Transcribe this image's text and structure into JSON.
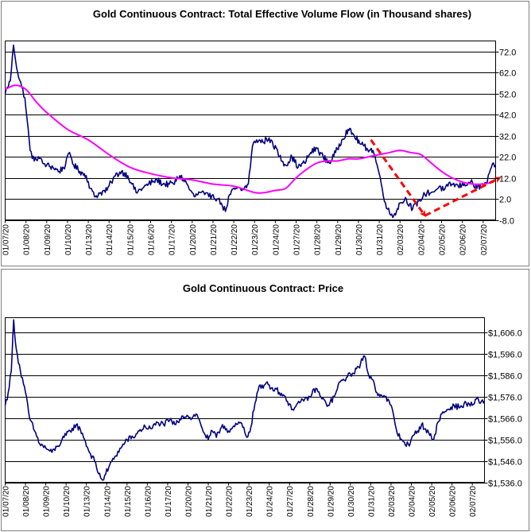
{
  "colors": {
    "series_main": "#000080",
    "moving_average": "#ff00ff",
    "trend_arrows": "#ff0000",
    "grid": "#000000",
    "background": "#ffffff"
  },
  "chart_data": [
    {
      "type": "line",
      "title": "Gold Continuous Contract: Total Effective Volume Flow (in Thousand shares)",
      "xlabel": "",
      "ylabel": "",
      "ylim": [
        -8,
        77
      ],
      "y_ticks": [
        -8,
        2,
        12,
        22,
        32,
        42,
        52,
        62,
        72
      ],
      "y_tick_labels": [
        "-8.0",
        "2.0",
        "12.0",
        "22.0",
        "32.0",
        "42.0",
        "52.0",
        "62.0",
        "72.0"
      ],
      "y_axis_side": "right",
      "grid": true,
      "legend": "none",
      "x_categories": [
        "01/07/20",
        "01/08/20",
        "01/09/20",
        "01/10/20",
        "01/13/20",
        "01/14/20",
        "01/15/20",
        "01/16/20",
        "01/17/20",
        "01/20/20",
        "01/21/20",
        "01/22/20",
        "01/23/20",
        "01/24/20",
        "01/27/20",
        "01/28/20",
        "01/29/20",
        "01/30/20",
        "01/31/20",
        "02/03/20",
        "02/04/20",
        "02/05/20",
        "02/06/20",
        "02/07/20"
      ],
      "series": [
        {
          "style": "volatile",
          "color": "#000080",
          "x": [
            0,
            0.1,
            0.25,
            0.4,
            0.6,
            0.8,
            0.95,
            1.05,
            1.2,
            1.4,
            1.6,
            1.8,
            2,
            2.3,
            2.6,
            2.9,
            3.1,
            3.3,
            3.6,
            3.9,
            4.1,
            4.3,
            4.6,
            4.9,
            5.1,
            5.3,
            5.6,
            5.9,
            6.1,
            6.3,
            6.6,
            6.9,
            7.1,
            7.3,
            7.6,
            7.9,
            8.1,
            8.4,
            8.7,
            8.9,
            9.1,
            9.4,
            9.6,
            9.8,
            10,
            10.2,
            10.4,
            10.6,
            10.8,
            11.1,
            11.4,
            11.7,
            11.9,
            12.1,
            12.4,
            12.7,
            12.9,
            13.05,
            13.2,
            13.5,
            13.8,
            14.1,
            14.4,
            14.7,
            15,
            15.3,
            15.6,
            15.9,
            16.2,
            16.5,
            16.8,
            17.1,
            17.4,
            17.7,
            17.9,
            18.1,
            18.3,
            18.5,
            18.7,
            19,
            19.3,
            19.6,
            19.9,
            20.1,
            20.3,
            20.5,
            20.7,
            20.9,
            21.1,
            21.3,
            21.5,
            21.8,
            22.1,
            22.4,
            22.7,
            23,
            23.2,
            23.4,
            23.6
          ],
          "y": [
            52,
            55,
            58,
            75,
            62,
            55,
            50,
            40,
            25,
            20,
            22,
            19,
            18,
            17,
            15,
            18,
            24,
            18,
            15,
            13,
            7,
            3,
            5,
            6,
            10,
            13,
            15,
            13,
            9,
            5,
            7,
            9,
            10,
            11,
            9,
            9,
            9,
            13,
            10,
            6,
            3,
            5,
            4,
            3,
            4,
            2,
            0,
            -4,
            4,
            7,
            6,
            9,
            27,
            30,
            29,
            31,
            27,
            26,
            22,
            18,
            22,
            17,
            19,
            24,
            26,
            22,
            19,
            24,
            30,
            35,
            32,
            28,
            26,
            25,
            18,
            9,
            0,
            -5,
            -6,
            0,
            2,
            -3,
            1,
            3,
            5,
            5,
            6,
            8,
            6,
            8,
            9,
            8,
            9,
            10,
            7,
            9,
            10,
            17,
            18
          ]
        },
        {
          "style": "smooth",
          "color": "#ff00ff",
          "x": [
            0,
            0.5,
            1,
            1.5,
            2,
            3,
            4,
            5,
            6,
            7,
            8,
            9,
            10,
            11,
            12,
            12.5,
            13,
            13.5,
            14,
            14.5,
            15,
            15.5,
            16,
            16.5,
            17,
            17.5,
            18,
            18.5,
            19,
            19.5,
            20,
            20.5,
            21,
            21.5,
            22,
            22.5,
            23,
            23.5
          ],
          "y": [
            54,
            56,
            54,
            48,
            43,
            35,
            30,
            23,
            17,
            14,
            12,
            11,
            9,
            8,
            5,
            5,
            6,
            7,
            12,
            16,
            19,
            20,
            20,
            21,
            21,
            22,
            23,
            24,
            25,
            24,
            23,
            19,
            15,
            12,
            10,
            9,
            9,
            10
          ]
        }
      ],
      "annotations": [
        {
          "kind": "dashed-arrow",
          "color": "#ff0000",
          "from": [
            17.6,
            30
          ],
          "to": [
            20.2,
            -6
          ]
        },
        {
          "kind": "dashed-arrow",
          "color": "#ff0000",
          "from": [
            20.2,
            -6
          ],
          "to": [
            23.8,
            12
          ]
        }
      ]
    },
    {
      "type": "line",
      "title": "Gold Continuous Contract: Price",
      "xlabel": "",
      "ylabel": "",
      "ylim": [
        1536,
        1613
      ],
      "y_ticks": [
        1536,
        1546,
        1556,
        1566,
        1576,
        1586,
        1596,
        1606
      ],
      "y_tick_labels": [
        "$1,536.0",
        "$1,546.0",
        "$1,556.0",
        "$1,566.0",
        "$1,576.0",
        "$1,586.0",
        "$1,596.0",
        "$1,606.0"
      ],
      "y_axis_side": "right",
      "grid": true,
      "legend": "none",
      "x_categories": [
        "01/07/20",
        "01/08/20",
        "01/09/20",
        "01/10/20",
        "01/13/20",
        "01/14/20",
        "01/15/20",
        "01/16/20",
        "01/17/20",
        "01/20/20",
        "01/21/20",
        "01/22/20",
        "01/23/20",
        "01/24/20",
        "01/27/20",
        "01/28/20",
        "01/29/20",
        "01/30/20",
        "01/31/20",
        "02/03/20",
        "02/04/20",
        "02/05/20",
        "02/06/20",
        "02/07/20"
      ],
      "series": [
        {
          "style": "volatile",
          "color": "#000080",
          "x": [
            0,
            0.15,
            0.3,
            0.42,
            0.55,
            0.75,
            0.9,
            1,
            1.2,
            1.45,
            1.7,
            2,
            2.3,
            2.6,
            2.9,
            3.2,
            3.5,
            3.8,
            4.1,
            4.4,
            4.6,
            4.8,
            5.1,
            5.4,
            5.7,
            6,
            6.3,
            6.6,
            6.9,
            7.2,
            7.5,
            7.8,
            8.1,
            8.4,
            8.7,
            9,
            9.2,
            9.4,
            9.6,
            9.8,
            10,
            10.2,
            10.4,
            10.7,
            11,
            11.3,
            11.6,
            11.9,
            12.1,
            12.3,
            12.5,
            12.7,
            12.9,
            13.1,
            13.3,
            13.5,
            13.8,
            14.1,
            14.4,
            14.7,
            15,
            15.3,
            15.6,
            15.9,
            16.2,
            16.5,
            16.8,
            17.1,
            17.4,
            17.7,
            17.9,
            18.1,
            18.3,
            18.5,
            18.7,
            19,
            19.3,
            19.6,
            19.9,
            20.1,
            20.3,
            20.5,
            20.7,
            20.9,
            21.1,
            21.3,
            21.5,
            21.8,
            22.1,
            22.4,
            22.7,
            23,
            23.2,
            23.4,
            23.6
          ],
          "y": [
            1572,
            1578,
            1588,
            1612,
            1598,
            1588,
            1582,
            1578,
            1566,
            1560,
            1554,
            1552,
            1550,
            1553,
            1557,
            1560,
            1563,
            1559,
            1551,
            1546,
            1540,
            1537,
            1543,
            1548,
            1552,
            1556,
            1557,
            1560,
            1562,
            1561,
            1564,
            1563,
            1565,
            1563,
            1567,
            1567,
            1566,
            1568,
            1564,
            1559,
            1556,
            1560,
            1557,
            1563,
            1560,
            1562,
            1564,
            1557,
            1562,
            1573,
            1581,
            1580,
            1583,
            1580,
            1580,
            1578,
            1576,
            1570,
            1573,
            1574,
            1576,
            1580,
            1575,
            1572,
            1576,
            1583,
            1585,
            1587,
            1590,
            1595,
            1586,
            1584,
            1578,
            1577,
            1576,
            1572,
            1559,
            1555,
            1553,
            1558,
            1560,
            1563,
            1561,
            1558,
            1556,
            1564,
            1568,
            1570,
            1572,
            1571,
            1573,
            1572,
            1575,
            1573,
            1574
          ]
        }
      ],
      "annotations": []
    }
  ]
}
